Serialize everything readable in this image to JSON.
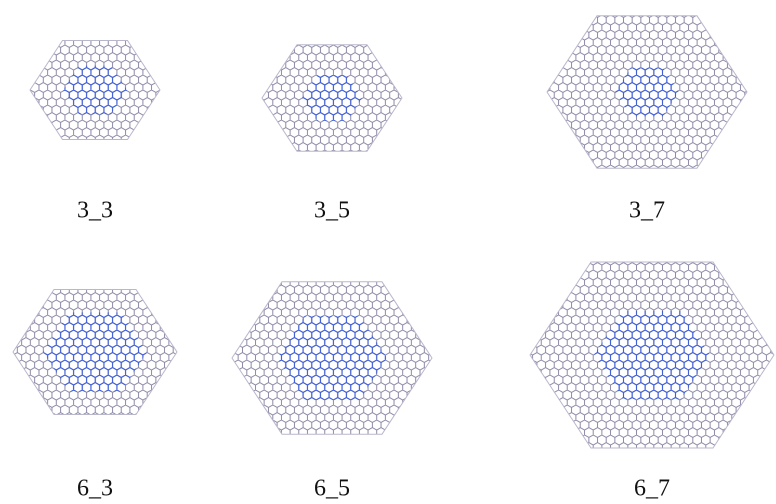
{
  "panels": [
    {
      "label": "3_3"
    },
    {
      "label": "3_5"
    },
    {
      "label": "3_7"
    },
    {
      "label": "6_3"
    },
    {
      "label": "6_5"
    },
    {
      "label": "6_7"
    }
  ]
}
